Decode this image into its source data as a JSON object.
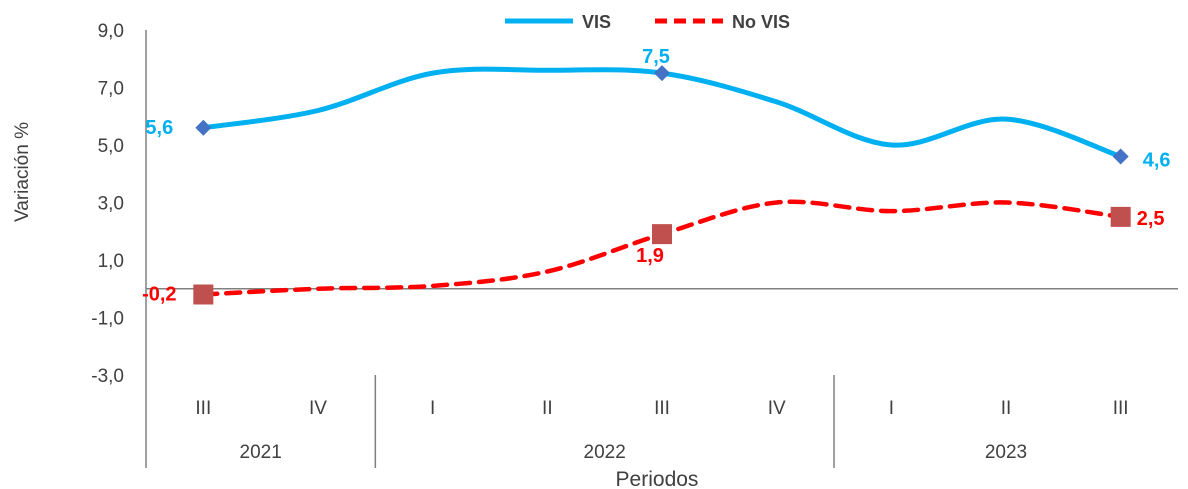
{
  "chart_data": {
    "type": "line",
    "title": "",
    "xlabel": "Periodos",
    "ylabel": "Variación %",
    "ylim": [
      -3,
      9
    ],
    "yticks": [
      "9,0",
      "7,0",
      "5,0",
      "3,0",
      "1,0",
      "-1,0",
      "-3,0"
    ],
    "categories": [
      "III",
      "IV",
      "I",
      "II",
      "III",
      "IV",
      "I",
      "II",
      "III"
    ],
    "groups": [
      {
        "label": "2021",
        "span": 2
      },
      {
        "label": "2022",
        "span": 4
      },
      {
        "label": "2023",
        "span": 3
      }
    ],
    "legend_position": "top",
    "series": [
      {
        "name": "VIS",
        "color": "#00B0F0",
        "marker_color": "#4472C4",
        "style": "solid",
        "values": [
          5.6,
          6.2,
          7.5,
          7.6,
          7.5,
          6.5,
          5.0,
          5.9,
          4.6
        ],
        "labels": [
          {
            "index": 0,
            "text": "5,6"
          },
          {
            "index": 4,
            "text": "7,5"
          },
          {
            "index": 8,
            "text": "4,6"
          }
        ]
      },
      {
        "name": "No VIS",
        "color": "#FF0000",
        "marker_color": "#C0504D",
        "style": "dashed",
        "values": [
          -0.2,
          0.0,
          0.1,
          0.6,
          1.9,
          3.0,
          2.7,
          3.0,
          2.5
        ],
        "labels": [
          {
            "index": 0,
            "text": "-0,2"
          },
          {
            "index": 4,
            "text": "1,9"
          },
          {
            "index": 8,
            "text": "2,5"
          }
        ]
      }
    ]
  }
}
